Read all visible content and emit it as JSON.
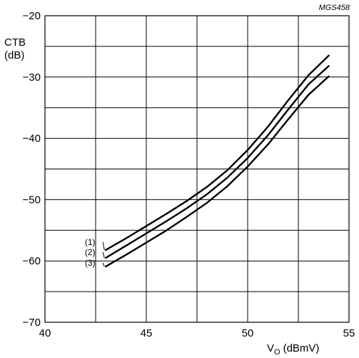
{
  "figure_id": "MGS458",
  "chart_data": {
    "type": "line",
    "xlabel": "V",
    "xlabel_subscript": "O",
    "xlabel_unit": "(dBmV)",
    "ylabel_line1": "CTB",
    "ylabel_line2": "(dB)",
    "xlim": [
      40,
      55
    ],
    "ylim": [
      -70,
      -20
    ],
    "x_ticks": [
      40,
      45,
      50,
      55
    ],
    "y_ticks": [
      -70,
      -60,
      -50,
      -40,
      -30,
      -20
    ],
    "x_tick_labels": [
      "40",
      "45",
      "50",
      "55"
    ],
    "y_tick_labels": [
      "−70",
      "−60",
      "−50",
      "−40",
      "−30",
      "−20"
    ],
    "grid": true,
    "x_grid_step": 2.5,
    "y_grid_step": 5,
    "series": [
      {
        "name": "(1)",
        "x": [
          43,
          44,
          45,
          46,
          47,
          48,
          49,
          50,
          51,
          52,
          53,
          54
        ],
        "y": [
          -58.2,
          -56.3,
          -54.3,
          -52.3,
          -50.2,
          -47.9,
          -45.2,
          -41.9,
          -38.1,
          -33.8,
          -29.7,
          -26.5
        ]
      },
      {
        "name": "(2)",
        "x": [
          43,
          44,
          45,
          46,
          47,
          48,
          49,
          50,
          51,
          52,
          53,
          54
        ],
        "y": [
          -59.5,
          -57.5,
          -55.5,
          -53.5,
          -51.4,
          -49.1,
          -46.4,
          -43.2,
          -39.5,
          -35.3,
          -31.2,
          -28.2
        ]
      },
      {
        "name": "(3)",
        "x": [
          43,
          44,
          45,
          46,
          47,
          48,
          49,
          50,
          51,
          52,
          53,
          54
        ],
        "y": [
          -60.9,
          -59.0,
          -57.0,
          -55.0,
          -52.8,
          -50.5,
          -47.8,
          -44.6,
          -41.0,
          -36.9,
          -32.9,
          -29.9
        ]
      }
    ],
    "series_label_text": [
      "(1)",
      "(2)",
      "(3)"
    ]
  }
}
